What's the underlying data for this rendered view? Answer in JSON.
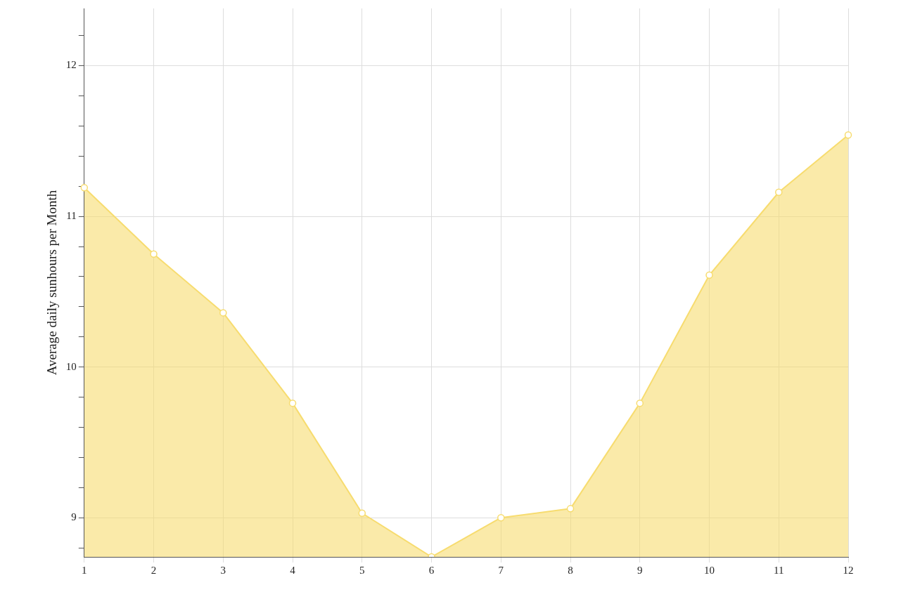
{
  "chart_data": {
    "type": "area",
    "ylabel": "Average daily sunhours per Month",
    "categories": [
      "1",
      "2",
      "3",
      "4",
      "5",
      "6",
      "7",
      "8",
      "9",
      "10",
      "11",
      "12"
    ],
    "series": [
      {
        "color": "#f7dc6f",
        "values": [
          11.19,
          10.75,
          10.36,
          9.76,
          9.03,
          8.74,
          9.0,
          9.06,
          9.76,
          10.61,
          11.16,
          11.54
        ]
      }
    ],
    "ylim": [
      8.74,
      12.38
    ],
    "yticks": [
      {
        "value": 8.8,
        "label": null
      },
      9,
      {
        "value": 9.2,
        "label": null
      },
      {
        "value": 9.4,
        "label": null
      },
      {
        "value": 9.6,
        "label": null
      },
      {
        "value": 9.8,
        "label": null
      },
      10,
      {
        "value": 10.2,
        "label": null
      },
      {
        "value": 10.4,
        "label": null
      },
      {
        "value": 10.6,
        "label": null
      },
      {
        "value": 10.8,
        "label": null
      },
      11,
      {
        "value": 11.2,
        "label": null
      },
      {
        "value": 11.4,
        "label": null
      },
      {
        "value": 11.6,
        "label": null
      },
      {
        "value": 11.8,
        "label": null
      },
      12,
      {
        "value": 12.2,
        "label": null
      }
    ],
    "grid": true,
    "legend": false,
    "marker": "circle",
    "line_style": "solid"
  }
}
